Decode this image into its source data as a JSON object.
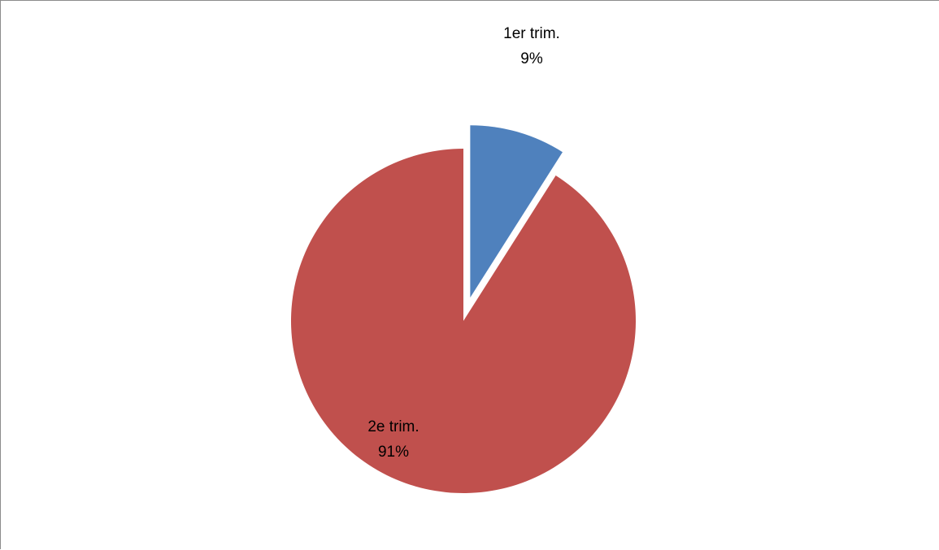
{
  "chart_data": {
    "type": "pie",
    "title": "",
    "slices": [
      {
        "label": "1er trim.",
        "value": 9,
        "value_label": "9%",
        "color": "#4F81BD",
        "exploded": true
      },
      {
        "label": "2e trim.",
        "value": 91,
        "value_label": "91%",
        "color": "#C0504D",
        "exploded": false
      }
    ],
    "start_angle_deg": 0,
    "direction": "clockwise",
    "legend": "none",
    "data_labels": "category and percentage"
  }
}
